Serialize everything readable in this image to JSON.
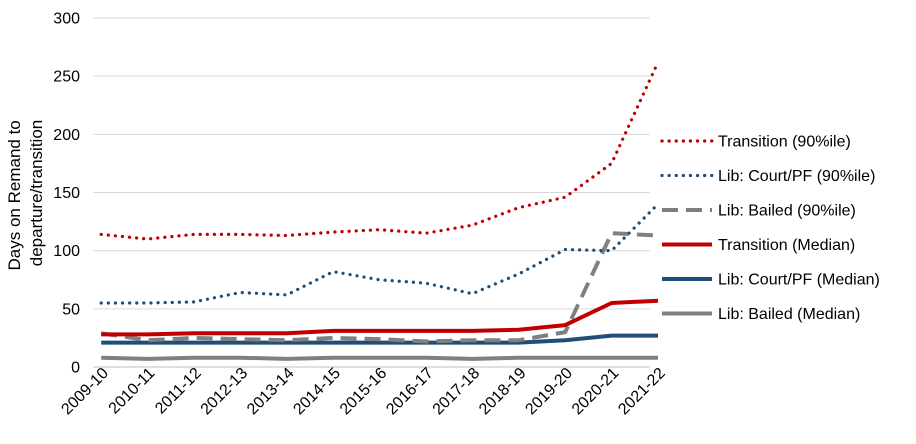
{
  "chart_data": {
    "type": "line",
    "title": "",
    "xlabel": "",
    "ylabel_lines": [
      "Days on Remand to",
      "departure/transition"
    ],
    "ylim": [
      0,
      300
    ],
    "yticks": [
      0,
      50,
      100,
      150,
      200,
      250,
      300
    ],
    "grid": "horizontal",
    "legend_position": "right",
    "categories": [
      "2009-10",
      "2010-11",
      "2011-12",
      "2012-13",
      "2013-14",
      "2014-15",
      "2015-16",
      "2016-17",
      "2017-18",
      "2018-19",
      "2019-20",
      "2020-21",
      "2021-22"
    ],
    "series": [
      {
        "name": "Transition (90%ile)",
        "color": "#c00000",
        "style": "dotted",
        "values": [
          114,
          110,
          114,
          114,
          113,
          116,
          118,
          115,
          122,
          137,
          146,
          175,
          262
        ]
      },
      {
        "name": "Lib: Court/PF (90%ile)",
        "color": "#1f4e79",
        "style": "dotted",
        "values": [
          55,
          55,
          56,
          64,
          62,
          82,
          75,
          72,
          63,
          80,
          101,
          100,
          140
        ]
      },
      {
        "name": "Lib: Bailed (90%ile)",
        "color": "#808080",
        "style": "dashed",
        "values": [
          29,
          23,
          25,
          24,
          23,
          25,
          24,
          22,
          23,
          23,
          30,
          115,
          113
        ]
      },
      {
        "name": "Transition (Median)",
        "color": "#c00000",
        "style": "solid",
        "values": [
          28,
          28,
          29,
          29,
          29,
          31,
          31,
          31,
          31,
          32,
          36,
          55,
          57
        ]
      },
      {
        "name": "Lib: Court/PF (Median)",
        "color": "#1f4e79",
        "style": "solid",
        "values": [
          21,
          21,
          21,
          21,
          21,
          21,
          21,
          21,
          21,
          21,
          23,
          27,
          27
        ]
      },
      {
        "name": "Lib: Bailed (Median)",
        "color": "#808080",
        "style": "solid",
        "values": [
          8,
          7,
          8,
          8,
          7,
          8,
          8,
          8,
          7,
          8,
          8,
          8,
          8
        ]
      }
    ]
  }
}
